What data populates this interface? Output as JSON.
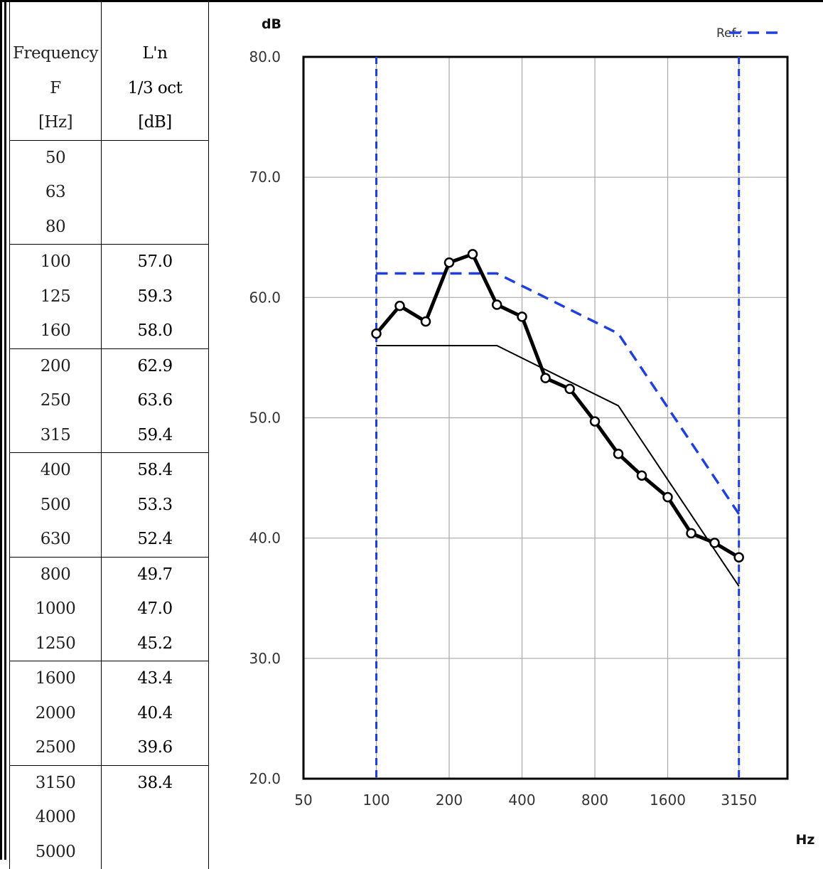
{
  "table": {
    "headers": {
      "frequency": [
        "Frequency",
        "F",
        "[Hz]"
      ],
      "value": [
        "L'n",
        "1/3 oct",
        "[dB]"
      ]
    },
    "rows": [
      {
        "f": "50",
        "v": ""
      },
      {
        "f": "63",
        "v": ""
      },
      {
        "f": "80",
        "v": ""
      },
      {
        "f": "100",
        "v": "57.0"
      },
      {
        "f": "125",
        "v": "59.3"
      },
      {
        "f": "160",
        "v": "58.0"
      },
      {
        "f": "200",
        "v": "62.9"
      },
      {
        "f": "250",
        "v": "63.6"
      },
      {
        "f": "315",
        "v": "59.4"
      },
      {
        "f": "400",
        "v": "58.4"
      },
      {
        "f": "500",
        "v": "53.3"
      },
      {
        "f": "630",
        "v": "52.4"
      },
      {
        "f": "800",
        "v": "49.7"
      },
      {
        "f": "1000",
        "v": "47.0"
      },
      {
        "f": "1250",
        "v": "45.2"
      },
      {
        "f": "1600",
        "v": "43.4"
      },
      {
        "f": "2000",
        "v": "40.4"
      },
      {
        "f": "2500",
        "v": "39.6"
      },
      {
        "f": "3150",
        "v": "38.4"
      },
      {
        "f": "4000",
        "v": ""
      },
      {
        "f": "5000",
        "v": ""
      }
    ]
  },
  "chart_data": {
    "type": "line",
    "xscale": "log",
    "ylabel": "dB",
    "xlabel": "Hz",
    "ylim": [
      20,
      80
    ],
    "xlim": [
      50,
      5000
    ],
    "yticks": [
      "20.0",
      "30.0",
      "40.0",
      "50.0",
      "60.0",
      "70.0",
      "80.0"
    ],
    "xticks": [
      {
        "f": 50,
        "label": "50"
      },
      {
        "f": 100,
        "label": "100"
      },
      {
        "f": 200,
        "label": "200"
      },
      {
        "f": 400,
        "label": "400"
      },
      {
        "f": 800,
        "label": "800"
      },
      {
        "f": 1600,
        "label": "1600"
      },
      {
        "f": 3150,
        "label": "3150"
      }
    ],
    "grid": true,
    "legend": {
      "label": "Ref.:",
      "position": "top-right"
    },
    "series": [
      {
        "style": "thick-markers",
        "color": "#000000",
        "x": [
          100,
          125,
          160,
          200,
          250,
          315,
          400,
          500,
          630,
          800,
          1000,
          1250,
          1600,
          2000,
          2500,
          3150
        ],
        "y": [
          57.0,
          59.3,
          58.0,
          62.9,
          63.6,
          59.4,
          58.4,
          53.3,
          52.4,
          49.7,
          47.0,
          45.2,
          43.4,
          40.4,
          39.6,
          38.4
        ]
      },
      {
        "style": "thin",
        "color": "#000000",
        "x": [
          100,
          315,
          1000,
          3150
        ],
        "y": [
          56,
          56,
          51,
          36
        ]
      },
      {
        "name": "Ref.",
        "style": "dashed",
        "color": "#1f3fe0",
        "x": [
          100,
          315,
          1000,
          3150
        ],
        "y": [
          62,
          62,
          57,
          42
        ]
      }
    ],
    "range_markers": {
      "color": "#1f3fe0",
      "x": [
        100,
        3150
      ]
    }
  }
}
